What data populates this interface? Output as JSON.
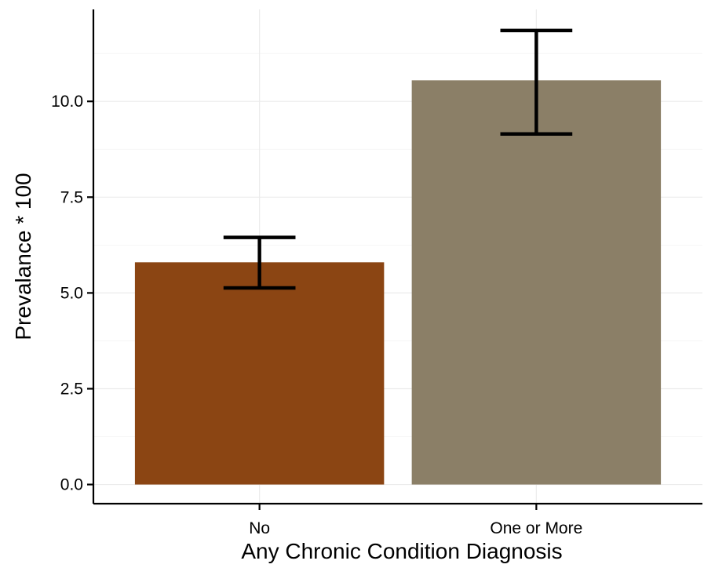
{
  "chart_data": {
    "type": "bar",
    "title": "",
    "xlabel": "Any Chronic Condition Diagnosis",
    "ylabel": "Prevalance * 100",
    "categories": [
      "No",
      "One or More"
    ],
    "values": [
      5.8,
      10.55
    ],
    "error_low": [
      5.13,
      9.15
    ],
    "error_high": [
      6.45,
      11.85
    ],
    "ylim": [
      -0.5,
      12.4
    ],
    "yticks": [
      0.0,
      2.5,
      5.0,
      7.5,
      10.0
    ],
    "ytick_labels": [
      "0.0",
      "2.5",
      "5.0",
      "7.5",
      "10.0"
    ],
    "colors": [
      "#8B4513",
      "#8B7F67"
    ],
    "grid": true,
    "legend": "none"
  }
}
